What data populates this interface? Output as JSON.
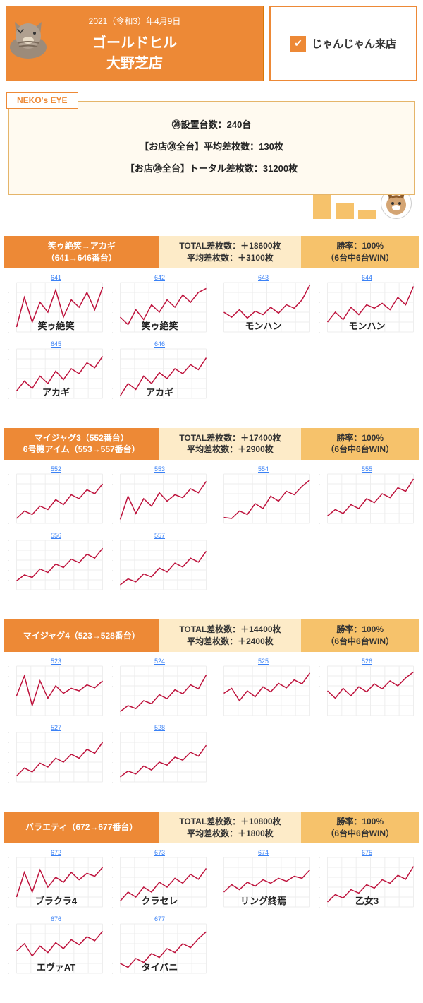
{
  "header": {
    "date": "2021（令和3）年4月9日",
    "title_line1": "ゴールドヒル",
    "title_line2": "大野芝店",
    "right_label": "じゃんじゃん来店",
    "bg_color": "#ed8936",
    "border_color": "#d97706",
    "text_color": "#ffffff"
  },
  "eye": {
    "tab": "NEKO's EYE",
    "line1": "⑳設置台数：240台",
    "line2": "【お店⑳全台】平均差枚数：130枚",
    "line3": "【お店⑳全台】トータル差枚数：31200枚",
    "bar_color": "#f6c26b"
  },
  "sections": [
    {
      "title_line1": "笑ゥ絶笑→アカギ",
      "title_line2": "（641→646番台）",
      "stat1a": "TOTAL差枚数：＋18600枚",
      "stat1b": "平均差枚数：＋3100枚",
      "stat2a": "勝率：100%",
      "stat2b": "（6台中6台WIN）",
      "charts": [
        {
          "num": "641",
          "label": "笑ゥ絶笑",
          "values": [
            10,
            70,
            20,
            60,
            40,
            85,
            30,
            65,
            50,
            80,
            45,
            90
          ]
        },
        {
          "num": "642",
          "label": "笑ゥ絶笑",
          "values": [
            30,
            15,
            45,
            25,
            55,
            40,
            65,
            50,
            75,
            60,
            80,
            88
          ]
        },
        {
          "num": "643",
          "label": "モンハン",
          "values": [
            40,
            30,
            45,
            28,
            42,
            35,
            50,
            38,
            55,
            48,
            65,
            95
          ]
        },
        {
          "num": "644",
          "label": "モンハン",
          "values": [
            20,
            40,
            25,
            50,
            35,
            55,
            48,
            58,
            45,
            70,
            55,
            92
          ]
        },
        {
          "num": "645",
          "label": "アカギ",
          "values": [
            15,
            35,
            20,
            45,
            30,
            55,
            38,
            60,
            50,
            72,
            62,
            85
          ]
        },
        {
          "num": "646",
          "label": "アカギ",
          "values": [
            5,
            30,
            18,
            45,
            30,
            52,
            40,
            60,
            50,
            68,
            58,
            82
          ]
        }
      ]
    },
    {
      "title_line1": "マイジャグ3（552番台）",
      "title_line2": "6号機アイム（553→557番台）",
      "stat1a": "TOTAL差枚数：＋17400枚",
      "stat1b": "平均差枚数：＋2900枚",
      "stat2a": "勝率：100%",
      "stat2b": "（6台中6台WIN）",
      "charts": [
        {
          "num": "552",
          "label": "",
          "values": [
            10,
            25,
            18,
            35,
            28,
            48,
            38,
            58,
            50,
            68,
            60,
            80
          ]
        },
        {
          "num": "553",
          "label": "",
          "values": [
            8,
            55,
            20,
            50,
            35,
            62,
            45,
            58,
            52,
            70,
            62,
            85
          ]
        },
        {
          "num": "554",
          "label": "",
          "values": [
            12,
            10,
            25,
            18,
            40,
            30,
            55,
            45,
            65,
            58,
            75,
            88
          ]
        },
        {
          "num": "555",
          "label": "",
          "values": [
            15,
            28,
            20,
            38,
            30,
            50,
            42,
            60,
            52,
            72,
            65,
            90
          ]
        },
        {
          "num": "556",
          "label": "",
          "values": [
            18,
            30,
            25,
            42,
            35,
            52,
            45,
            62,
            55,
            72,
            64,
            84
          ]
        },
        {
          "num": "557",
          "label": "",
          "values": [
            10,
            22,
            16,
            32,
            26,
            44,
            36,
            54,
            46,
            64,
            56,
            78
          ]
        }
      ]
    },
    {
      "title_line1": "マイジャグ4（523→528番台）",
      "title_line2": "",
      "stat1a": "TOTAL差枚数：＋14400枚",
      "stat1b": "平均差枚数：＋2400枚",
      "stat2a": "勝率：100%",
      "stat2b": "（6台中6台WIN）",
      "charts": [
        {
          "num": "523",
          "label": "",
          "values": [
            40,
            80,
            20,
            70,
            35,
            60,
            45,
            55,
            50,
            62,
            56,
            70
          ]
        },
        {
          "num": "524",
          "label": "",
          "values": [
            8,
            20,
            14,
            30,
            24,
            42,
            34,
            52,
            44,
            62,
            54,
            82
          ]
        },
        {
          "num": "525",
          "label": "",
          "values": [
            45,
            55,
            30,
            50,
            38,
            58,
            48,
            65,
            56,
            72,
            64,
            86
          ]
        },
        {
          "num": "526",
          "label": "",
          "values": [
            50,
            35,
            55,
            40,
            58,
            48,
            64,
            54,
            70,
            60,
            76,
            88
          ]
        },
        {
          "num": "527",
          "label": "",
          "values": [
            12,
            28,
            20,
            38,
            30,
            48,
            40,
            56,
            48,
            66,
            58,
            80
          ]
        },
        {
          "num": "528",
          "label": "",
          "values": [
            10,
            22,
            16,
            32,
            24,
            40,
            34,
            50,
            44,
            60,
            52,
            74
          ]
        }
      ]
    },
    {
      "title_line1": "バラエティ（672→677番台）",
      "title_line2": "",
      "stat1a": "TOTAL差枚数：＋10800枚",
      "stat1b": "平均差枚数：＋1800枚",
      "stat2a": "勝率：100%",
      "stat2b": "（6台中6台WIN）",
      "charts": [
        {
          "num": "672",
          "label": "ブラクラ4",
          "values": [
            20,
            70,
            30,
            75,
            40,
            60,
            50,
            70,
            55,
            68,
            62,
            80
          ]
        },
        {
          "num": "673",
          "label": "クラセレ",
          "values": [
            12,
            30,
            20,
            40,
            30,
            50,
            40,
            58,
            48,
            66,
            56,
            78
          ]
        },
        {
          "num": "674",
          "label": "リング終焉",
          "values": [
            30,
            45,
            35,
            50,
            42,
            55,
            48,
            58,
            52,
            62,
            58,
            75
          ]
        },
        {
          "num": "675",
          "label": "乙女3",
          "values": [
            10,
            25,
            18,
            35,
            28,
            45,
            38,
            55,
            48,
            64,
            56,
            82
          ]
        },
        {
          "num": "676",
          "label": "エヴァAT",
          "values": [
            45,
            60,
            35,
            55,
            42,
            62,
            50,
            68,
            58,
            74,
            66,
            85
          ]
        },
        {
          "num": "677",
          "label": "タイバニ",
          "values": [
            20,
            12,
            30,
            22,
            40,
            32,
            50,
            42,
            60,
            52,
            70,
            84
          ]
        }
      ]
    }
  ],
  "chart_style": {
    "line_color": "#be123c",
    "grid_color": "#eeeeee",
    "num_color": "#3b82f6",
    "ylim": [
      0,
      100
    ],
    "grid_rows": 5,
    "grid_cols": 6,
    "line_width": 1.5
  },
  "colors": {
    "section_h1_bg": "#ed8936",
    "section_h2_bg": "#fdebc8",
    "section_h3_bg": "#f6c26b"
  }
}
